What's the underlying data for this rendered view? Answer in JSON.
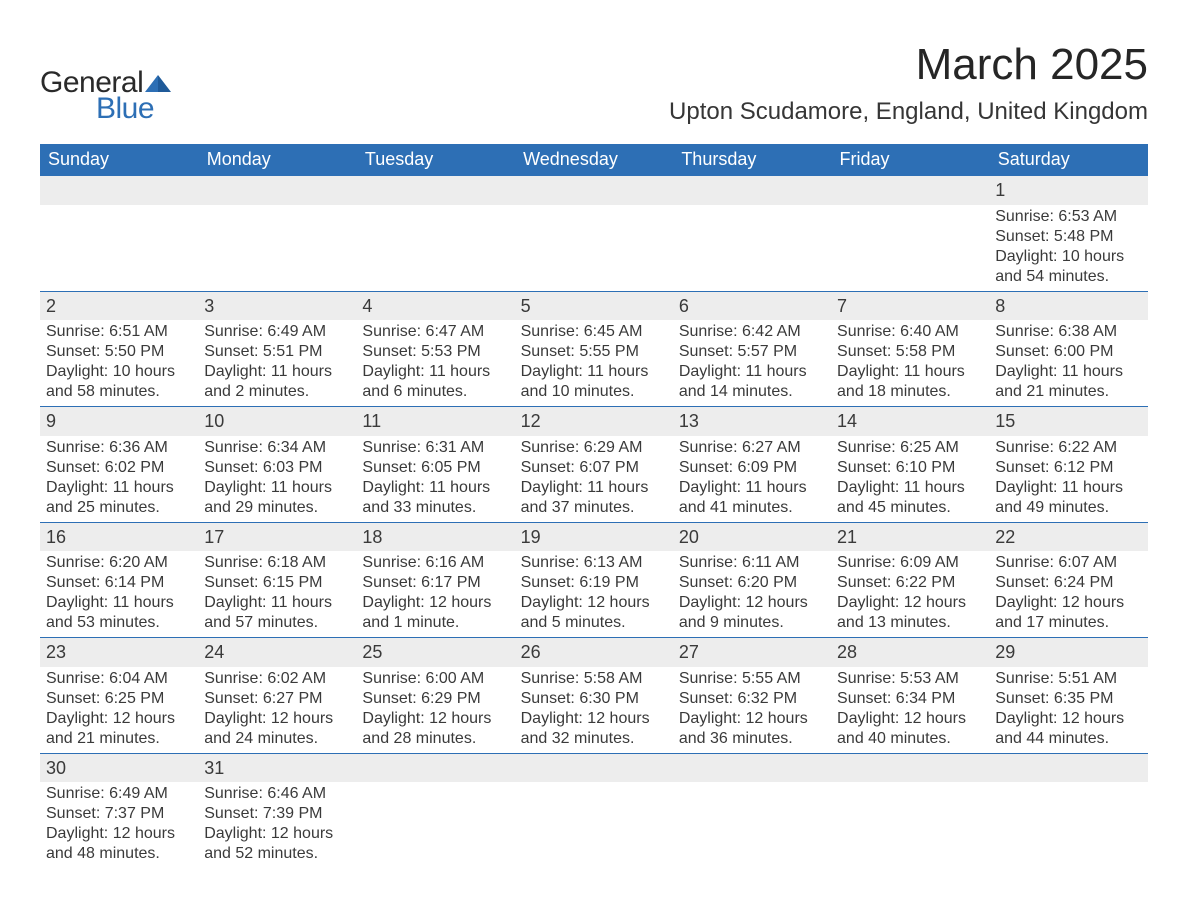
{
  "brand": {
    "name_part1": "General",
    "name_part2": "Blue",
    "color_primary": "#2d6fb5",
    "color_text": "#2a2a2a"
  },
  "header": {
    "month_title": "March 2025",
    "location": "Upton Scudamore, England, United Kingdom"
  },
  "styling": {
    "header_bg": "#2d6fb5",
    "header_fg": "#ffffff",
    "daynum_bg": "#ededed",
    "page_bg": "#ffffff",
    "text_color": "#3a3a3a",
    "row_border": "#2d6fb5",
    "font_family": "Arial",
    "title_fontsize_pt": 33,
    "location_fontsize_pt": 18,
    "weekday_fontsize_pt": 14,
    "body_fontsize_pt": 12
  },
  "weekdays": [
    "Sunday",
    "Monday",
    "Tuesday",
    "Wednesday",
    "Thursday",
    "Friday",
    "Saturday"
  ],
  "weeks": [
    [
      null,
      null,
      null,
      null,
      null,
      null,
      {
        "d": "1",
        "sr": "Sunrise: 6:53 AM",
        "ss": "Sunset: 5:48 PM",
        "dl1": "Daylight: 10 hours",
        "dl2": "and 54 minutes."
      }
    ],
    [
      {
        "d": "2",
        "sr": "Sunrise: 6:51 AM",
        "ss": "Sunset: 5:50 PM",
        "dl1": "Daylight: 10 hours",
        "dl2": "and 58 minutes."
      },
      {
        "d": "3",
        "sr": "Sunrise: 6:49 AM",
        "ss": "Sunset: 5:51 PM",
        "dl1": "Daylight: 11 hours",
        "dl2": "and 2 minutes."
      },
      {
        "d": "4",
        "sr": "Sunrise: 6:47 AM",
        "ss": "Sunset: 5:53 PM",
        "dl1": "Daylight: 11 hours",
        "dl2": "and 6 minutes."
      },
      {
        "d": "5",
        "sr": "Sunrise: 6:45 AM",
        "ss": "Sunset: 5:55 PM",
        "dl1": "Daylight: 11 hours",
        "dl2": "and 10 minutes."
      },
      {
        "d": "6",
        "sr": "Sunrise: 6:42 AM",
        "ss": "Sunset: 5:57 PM",
        "dl1": "Daylight: 11 hours",
        "dl2": "and 14 minutes."
      },
      {
        "d": "7",
        "sr": "Sunrise: 6:40 AM",
        "ss": "Sunset: 5:58 PM",
        "dl1": "Daylight: 11 hours",
        "dl2": "and 18 minutes."
      },
      {
        "d": "8",
        "sr": "Sunrise: 6:38 AM",
        "ss": "Sunset: 6:00 PM",
        "dl1": "Daylight: 11 hours",
        "dl2": "and 21 minutes."
      }
    ],
    [
      {
        "d": "9",
        "sr": "Sunrise: 6:36 AM",
        "ss": "Sunset: 6:02 PM",
        "dl1": "Daylight: 11 hours",
        "dl2": "and 25 minutes."
      },
      {
        "d": "10",
        "sr": "Sunrise: 6:34 AM",
        "ss": "Sunset: 6:03 PM",
        "dl1": "Daylight: 11 hours",
        "dl2": "and 29 minutes."
      },
      {
        "d": "11",
        "sr": "Sunrise: 6:31 AM",
        "ss": "Sunset: 6:05 PM",
        "dl1": "Daylight: 11 hours",
        "dl2": "and 33 minutes."
      },
      {
        "d": "12",
        "sr": "Sunrise: 6:29 AM",
        "ss": "Sunset: 6:07 PM",
        "dl1": "Daylight: 11 hours",
        "dl2": "and 37 minutes."
      },
      {
        "d": "13",
        "sr": "Sunrise: 6:27 AM",
        "ss": "Sunset: 6:09 PM",
        "dl1": "Daylight: 11 hours",
        "dl2": "and 41 minutes."
      },
      {
        "d": "14",
        "sr": "Sunrise: 6:25 AM",
        "ss": "Sunset: 6:10 PM",
        "dl1": "Daylight: 11 hours",
        "dl2": "and 45 minutes."
      },
      {
        "d": "15",
        "sr": "Sunrise: 6:22 AM",
        "ss": "Sunset: 6:12 PM",
        "dl1": "Daylight: 11 hours",
        "dl2": "and 49 minutes."
      }
    ],
    [
      {
        "d": "16",
        "sr": "Sunrise: 6:20 AM",
        "ss": "Sunset: 6:14 PM",
        "dl1": "Daylight: 11 hours",
        "dl2": "and 53 minutes."
      },
      {
        "d": "17",
        "sr": "Sunrise: 6:18 AM",
        "ss": "Sunset: 6:15 PM",
        "dl1": "Daylight: 11 hours",
        "dl2": "and 57 minutes."
      },
      {
        "d": "18",
        "sr": "Sunrise: 6:16 AM",
        "ss": "Sunset: 6:17 PM",
        "dl1": "Daylight: 12 hours",
        "dl2": "and 1 minute."
      },
      {
        "d": "19",
        "sr": "Sunrise: 6:13 AM",
        "ss": "Sunset: 6:19 PM",
        "dl1": "Daylight: 12 hours",
        "dl2": "and 5 minutes."
      },
      {
        "d": "20",
        "sr": "Sunrise: 6:11 AM",
        "ss": "Sunset: 6:20 PM",
        "dl1": "Daylight: 12 hours",
        "dl2": "and 9 minutes."
      },
      {
        "d": "21",
        "sr": "Sunrise: 6:09 AM",
        "ss": "Sunset: 6:22 PM",
        "dl1": "Daylight: 12 hours",
        "dl2": "and 13 minutes."
      },
      {
        "d": "22",
        "sr": "Sunrise: 6:07 AM",
        "ss": "Sunset: 6:24 PM",
        "dl1": "Daylight: 12 hours",
        "dl2": "and 17 minutes."
      }
    ],
    [
      {
        "d": "23",
        "sr": "Sunrise: 6:04 AM",
        "ss": "Sunset: 6:25 PM",
        "dl1": "Daylight: 12 hours",
        "dl2": "and 21 minutes."
      },
      {
        "d": "24",
        "sr": "Sunrise: 6:02 AM",
        "ss": "Sunset: 6:27 PM",
        "dl1": "Daylight: 12 hours",
        "dl2": "and 24 minutes."
      },
      {
        "d": "25",
        "sr": "Sunrise: 6:00 AM",
        "ss": "Sunset: 6:29 PM",
        "dl1": "Daylight: 12 hours",
        "dl2": "and 28 minutes."
      },
      {
        "d": "26",
        "sr": "Sunrise: 5:58 AM",
        "ss": "Sunset: 6:30 PM",
        "dl1": "Daylight: 12 hours",
        "dl2": "and 32 minutes."
      },
      {
        "d": "27",
        "sr": "Sunrise: 5:55 AM",
        "ss": "Sunset: 6:32 PM",
        "dl1": "Daylight: 12 hours",
        "dl2": "and 36 minutes."
      },
      {
        "d": "28",
        "sr": "Sunrise: 5:53 AM",
        "ss": "Sunset: 6:34 PM",
        "dl1": "Daylight: 12 hours",
        "dl2": "and 40 minutes."
      },
      {
        "d": "29",
        "sr": "Sunrise: 5:51 AM",
        "ss": "Sunset: 6:35 PM",
        "dl1": "Daylight: 12 hours",
        "dl2": "and 44 minutes."
      }
    ],
    [
      {
        "d": "30",
        "sr": "Sunrise: 6:49 AM",
        "ss": "Sunset: 7:37 PM",
        "dl1": "Daylight: 12 hours",
        "dl2": "and 48 minutes."
      },
      {
        "d": "31",
        "sr": "Sunrise: 6:46 AM",
        "ss": "Sunset: 7:39 PM",
        "dl1": "Daylight: 12 hours",
        "dl2": "and 52 minutes."
      },
      null,
      null,
      null,
      null,
      null
    ]
  ]
}
